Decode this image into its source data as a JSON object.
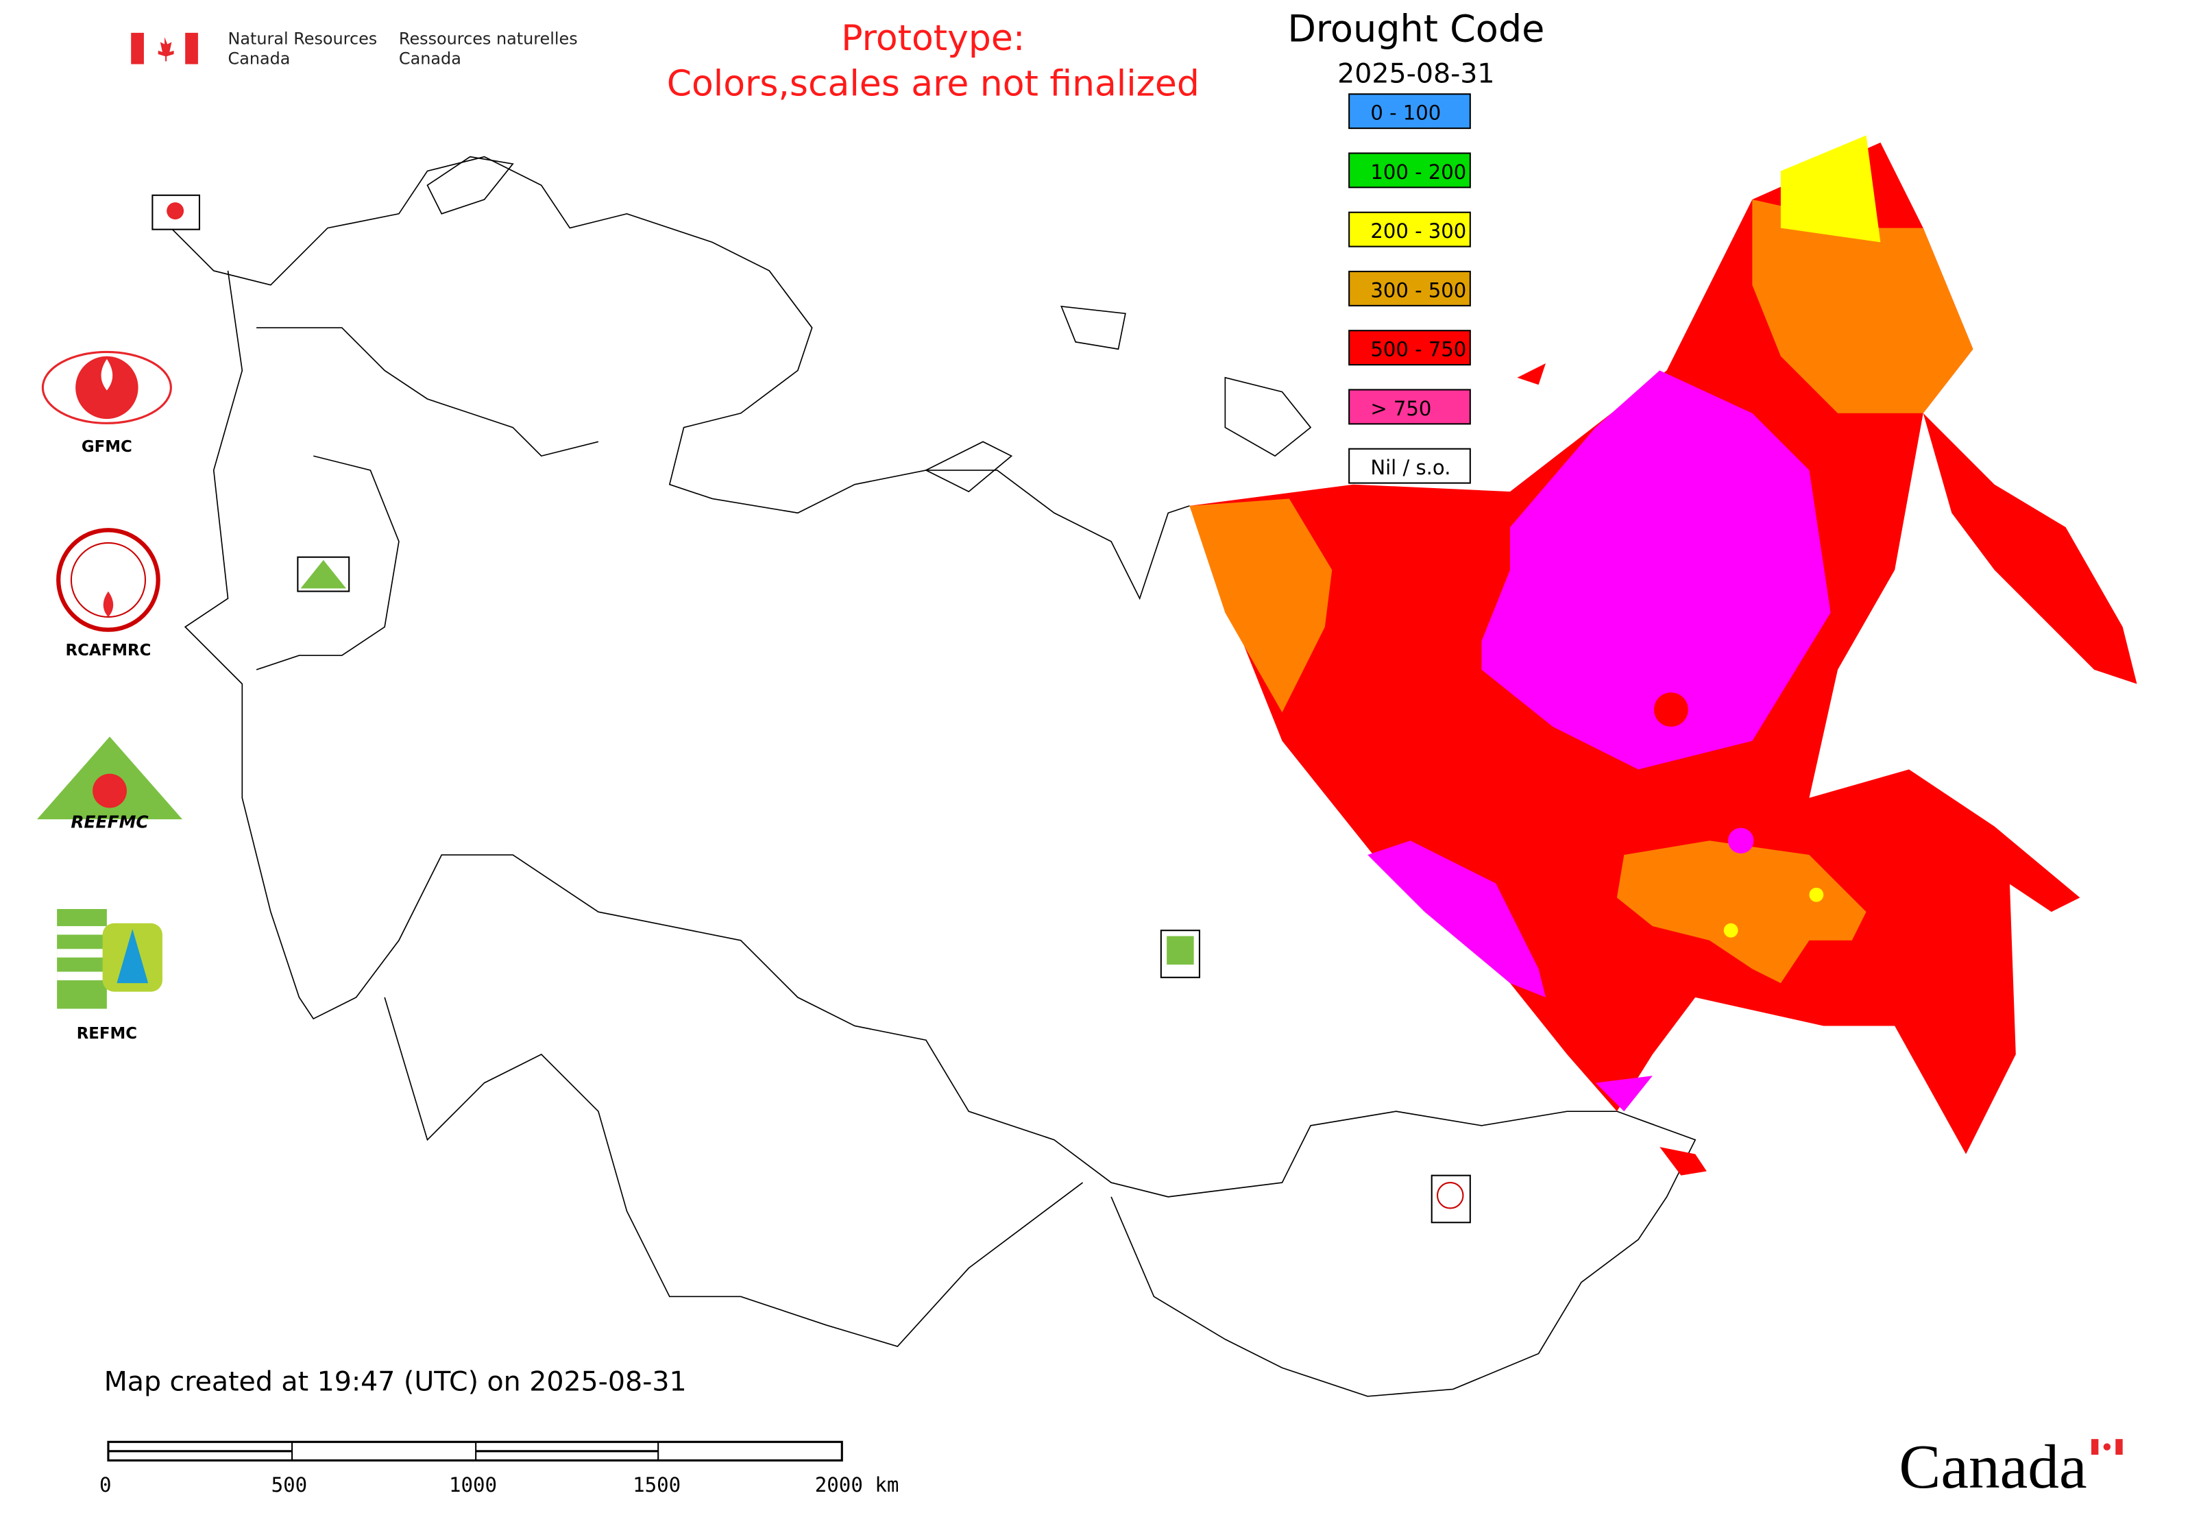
{
  "header": {
    "agency_en_line1": "Natural Resources",
    "agency_en_line2": "Canada",
    "agency_fr_line1": "Ressources naturelles",
    "agency_fr_line2": "Canada",
    "prototype_line1": "Prototype:",
    "prototype_line2": "Colors,scales are not finalized",
    "prototype_color": "#ff1a1a"
  },
  "legend": {
    "title": "Drought Code",
    "date": "2025-08-31",
    "items": [
      {
        "label": "0 - 100",
        "color": "#3399ff"
      },
      {
        "label": "100 - 200",
        "color": "#00dd00"
      },
      {
        "label": "200 - 300",
        "color": "#ffff00"
      },
      {
        "label": "300 - 500",
        "color": "#e0a000"
      },
      {
        "label": "500 - 750",
        "color": "#ff0000"
      },
      {
        "label": "> 750",
        "color": "#ff3399"
      },
      {
        "label": "Nil / s.o.",
        "color": "#ffffff"
      }
    ]
  },
  "map_colors": {
    "moderate": "#ff8000",
    "high": "#ff0000",
    "extreme": "#ff00ff",
    "low": "#ffff00"
  },
  "logos": {
    "gfmc": "GFMC",
    "rcafmrc": "RCAFMRC",
    "reefmc": "REEFMC",
    "refmc": "REFMC"
  },
  "footer": {
    "created": "Map created at 19:47 (UTC) on 2025-08-31",
    "scale_ticks": [
      "0",
      "500",
      "1000",
      "1500",
      "2000 km"
    ],
    "wordmark": "Canada"
  }
}
